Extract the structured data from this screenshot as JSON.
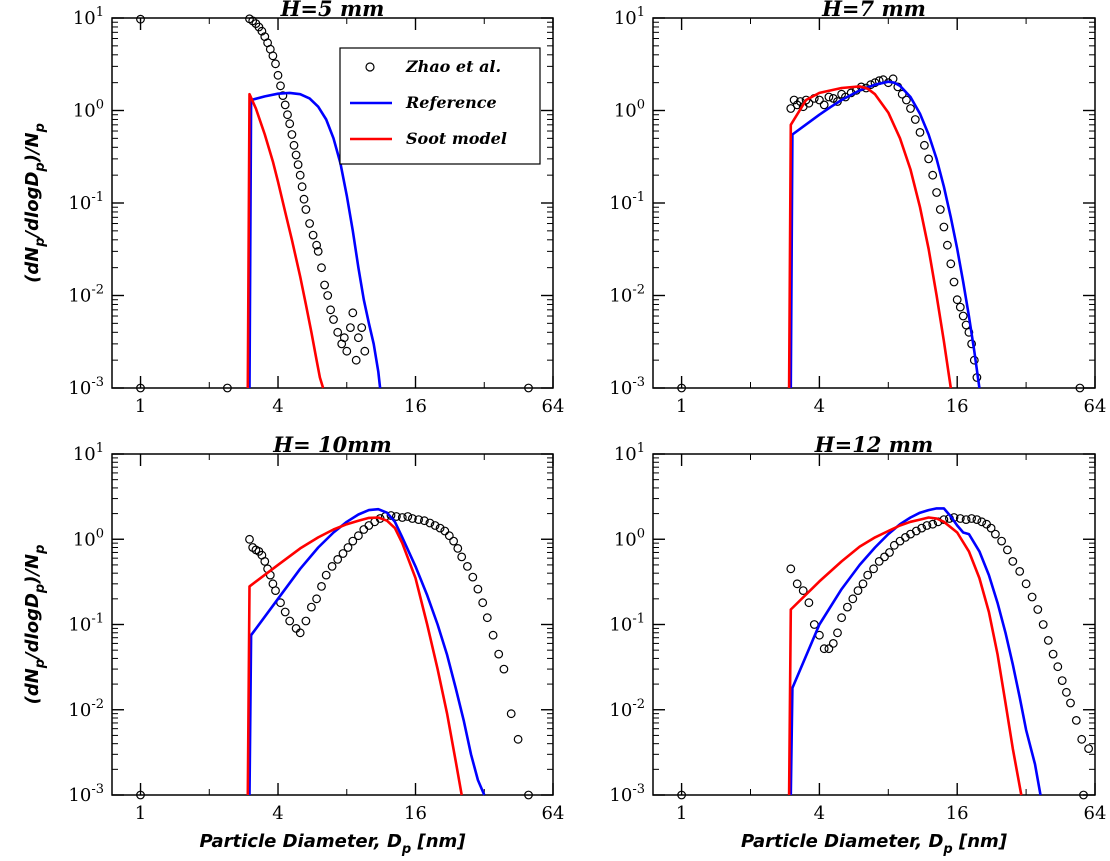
{
  "colors": {
    "reference": "#0000ff",
    "soot_model": "#ff0000",
    "experiment": "#000000"
  },
  "axis_text": {
    "ylabel_main": "(dN",
    "ylabel_sub1": "p",
    "ylabel_mid": "/dlogD",
    "ylabel_sub2": "p",
    "ylabel_end": ")/N",
    "ylabel_sub3": "p",
    "xlabel_main": "Particle Diameter, D",
    "xlabel_sub": "p",
    "xlabel_end": " [nm]",
    "ytick_base": "10",
    "ytick_exps": [
      "-3",
      "-2",
      "-1",
      "0",
      "1"
    ],
    "xticks": [
      "1",
      "4",
      "16",
      "64"
    ]
  },
  "legend": {
    "items": [
      "Zhao et al.",
      "Reference",
      "Soot model"
    ]
  },
  "chart_data": [
    {
      "type": "scatter",
      "title": "H=5 mm",
      "xlabel": "",
      "ylabel": "(dNp/dlogDp)/Np",
      "xscale": "log2",
      "yscale": "log10",
      "xlim": [
        0.75,
        64
      ],
      "ylim": [
        0.001,
        10
      ],
      "series": [
        {
          "name": "Zhao et al.",
          "kind": "scatter",
          "x": [
            1.0,
            3.0,
            3.1,
            3.2,
            3.3,
            3.4,
            3.5,
            3.6,
            3.7,
            3.8,
            3.9,
            4.0,
            4.1,
            4.2,
            4.3,
            4.4,
            4.5,
            4.6,
            4.7,
            4.8,
            4.9,
            5.0,
            5.1,
            5.2,
            5.3,
            5.5,
            5.7,
            5.9,
            6.0,
            6.2,
            6.4,
            6.6,
            6.8,
            7.0,
            7.3,
            7.6,
            7.8,
            8.0,
            8.3,
            8.5,
            8.8,
            9.0,
            9.3,
            9.6,
            1.0,
            2.4,
            50
          ],
          "y": [
            9.7,
            9.8,
            9.3,
            8.7,
            8.0,
            7.2,
            6.3,
            5.4,
            4.6,
            3.9,
            3.2,
            2.4,
            1.85,
            1.45,
            1.15,
            0.9,
            0.72,
            0.55,
            0.42,
            0.33,
            0.26,
            0.2,
            0.15,
            0.11,
            0.085,
            0.06,
            0.045,
            0.035,
            0.03,
            0.02,
            0.013,
            0.01,
            0.007,
            0.0055,
            0.004,
            0.003,
            0.0035,
            0.0025,
            0.0045,
            0.0065,
            0.002,
            0.0035,
            0.0045,
            0.0025,
            0.001,
            0.001,
            0.001
          ]
        },
        {
          "name": "Reference",
          "kind": "line",
          "x": [
            3.0,
            3.05,
            3.5,
            4.0,
            4.5,
            5.0,
            5.5,
            6.0,
            6.5,
            7.0,
            7.5,
            8.0,
            8.5,
            9.0,
            9.5,
            10.0,
            10.5,
            11.0,
            11.2
          ],
          "y": [
            0.001,
            1.3,
            1.42,
            1.52,
            1.55,
            1.5,
            1.35,
            1.1,
            0.8,
            0.5,
            0.27,
            0.12,
            0.05,
            0.02,
            0.009,
            0.005,
            0.003,
            0.0015,
            0.001
          ]
        },
        {
          "name": "Soot model",
          "kind": "line",
          "x": [
            2.95,
            3.0,
            3.2,
            3.5,
            3.8,
            4.0,
            4.3,
            4.6,
            5.0,
            5.3,
            5.6,
            5.9,
            6.1,
            6.3
          ],
          "y": [
            0.001,
            1.5,
            1.05,
            0.55,
            0.28,
            0.17,
            0.08,
            0.04,
            0.016,
            0.008,
            0.004,
            0.002,
            0.0013,
            0.001
          ]
        }
      ]
    },
    {
      "type": "scatter",
      "title": "H=7 mm",
      "xlabel": "",
      "ylabel": "",
      "xscale": "log2",
      "yscale": "log10",
      "xlim": [
        0.75,
        64
      ],
      "ylim": [
        0.001,
        10
      ],
      "series": [
        {
          "name": "Zhao et al.",
          "kind": "scatter",
          "x": [
            3.0,
            3.1,
            3.2,
            3.3,
            3.4,
            3.5,
            3.6,
            3.8,
            4.0,
            4.2,
            4.4,
            4.6,
            4.8,
            5.0,
            5.2,
            5.5,
            5.8,
            6.1,
            6.4,
            6.7,
            7.0,
            7.3,
            7.6,
            8.0,
            8.4,
            8.8,
            9.2,
            9.6,
            10.0,
            10.5,
            11.0,
            11.5,
            12.0,
            12.5,
            13.0,
            13.5,
            14.0,
            14.5,
            15.0,
            15.5,
            16.0,
            16.5,
            17.0,
            17.5,
            18.0,
            18.5,
            19.0,
            19.5,
            1.0,
            55
          ],
          "y": [
            1.05,
            1.3,
            1.15,
            1.25,
            1.1,
            1.3,
            1.2,
            1.35,
            1.3,
            1.15,
            1.4,
            1.35,
            1.25,
            1.5,
            1.4,
            1.55,
            1.65,
            1.8,
            1.75,
            1.9,
            2.0,
            2.1,
            2.15,
            2.0,
            2.2,
            1.8,
            1.5,
            1.3,
            1.05,
            0.8,
            0.58,
            0.42,
            0.3,
            0.2,
            0.13,
            0.085,
            0.055,
            0.035,
            0.022,
            0.014,
            0.009,
            0.0075,
            0.006,
            0.0048,
            0.004,
            0.003,
            0.002,
            0.0013,
            0.001,
            0.001
          ]
        },
        {
          "name": "Reference",
          "kind": "line",
          "x": [
            3.0,
            3.05,
            4.0,
            4.5,
            5.0,
            6.0,
            7.0,
            8.0,
            8.5,
            9.0,
            10.0,
            11.0,
            12.0,
            13.0,
            14.0,
            15.0,
            16.0,
            17.0,
            18.0,
            19.0,
            20.0
          ],
          "y": [
            0.001,
            0.55,
            0.9,
            1.1,
            1.3,
            1.65,
            1.9,
            2.05,
            2.0,
            1.85,
            1.4,
            0.92,
            0.55,
            0.3,
            0.15,
            0.07,
            0.032,
            0.014,
            0.006,
            0.0025,
            0.001
          ]
        },
        {
          "name": "Soot model",
          "kind": "line",
          "x": [
            2.95,
            3.0,
            3.5,
            4.0,
            5.0,
            6.0,
            6.5,
            7.0,
            8.0,
            9.0,
            10.0,
            11.0,
            12.0,
            13.0,
            14.0,
            15.0
          ],
          "y": [
            0.001,
            0.7,
            1.3,
            1.55,
            1.75,
            1.82,
            1.72,
            1.5,
            0.95,
            0.5,
            0.23,
            0.09,
            0.032,
            0.01,
            0.0032,
            0.001
          ]
        }
      ]
    },
    {
      "type": "scatter",
      "title": "H= 10mm",
      "xlabel": "Particle Diameter, Dp [nm]",
      "ylabel": "(dNp/dlogDp)/Np",
      "xscale": "log2",
      "yscale": "log10",
      "xlim": [
        0.75,
        64
      ],
      "ylim": [
        0.001,
        10
      ],
      "series": [
        {
          "name": "Zhao et al.",
          "kind": "scatter",
          "x": [
            3.0,
            3.1,
            3.2,
            3.3,
            3.4,
            3.5,
            3.6,
            3.7,
            3.8,
            3.9,
            4.1,
            4.3,
            4.5,
            4.8,
            5.0,
            5.3,
            5.6,
            5.9,
            6.2,
            6.5,
            6.9,
            7.3,
            7.7,
            8.1,
            8.5,
            9.0,
            9.5,
            10.0,
            10.6,
            11.2,
            11.8,
            12.5,
            13.2,
            14.0,
            14.8,
            15.5,
            16.5,
            17.5,
            18.5,
            19.5,
            20.5,
            21.5,
            22.5,
            23.5,
            24.5,
            25.5,
            27.0,
            28.5,
            30.0,
            31.5,
            33.0,
            35.0,
            37.0,
            39.0,
            42.0,
            45.0,
            1.0,
            50
          ],
          "y": [
            1.0,
            0.8,
            0.75,
            0.72,
            0.65,
            0.55,
            0.45,
            0.38,
            0.3,
            0.25,
            0.18,
            0.14,
            0.11,
            0.09,
            0.08,
            0.11,
            0.16,
            0.2,
            0.28,
            0.38,
            0.48,
            0.58,
            0.68,
            0.8,
            0.95,
            1.1,
            1.3,
            1.45,
            1.6,
            1.75,
            1.85,
            1.9,
            1.85,
            1.8,
            1.85,
            1.75,
            1.7,
            1.65,
            1.55,
            1.45,
            1.35,
            1.25,
            1.1,
            0.95,
            0.78,
            0.62,
            0.48,
            0.36,
            0.26,
            0.18,
            0.12,
            0.075,
            0.045,
            0.03,
            0.009,
            0.0045,
            0.001,
            0.001
          ]
        },
        {
          "name": "Reference",
          "kind": "line",
          "x": [
            3.0,
            3.05,
            4.0,
            5.0,
            6.0,
            7.0,
            8.0,
            9.0,
            10.0,
            11.0,
            12.0,
            13.0,
            14.0,
            16.0,
            18.0,
            20.0,
            22.0,
            24.0,
            26.0,
            28.0,
            30.0,
            32.0
          ],
          "y": [
            0.001,
            0.075,
            0.2,
            0.45,
            0.8,
            1.2,
            1.6,
            1.95,
            2.2,
            2.25,
            2.05,
            1.6,
            1.05,
            0.48,
            0.22,
            0.1,
            0.044,
            0.018,
            0.0075,
            0.003,
            0.0015,
            0.001
          ]
        },
        {
          "name": "Soot model",
          "kind": "line",
          "x": [
            2.95,
            3.0,
            4.0,
            5.0,
            6.0,
            7.0,
            8.0,
            9.0,
            10.0,
            11.0,
            12.0,
            13.0,
            14.0,
            16.0,
            18.0,
            20.0,
            22.0,
            24.0,
            25.5
          ],
          "y": [
            0.001,
            0.28,
            0.5,
            0.78,
            1.05,
            1.3,
            1.5,
            1.65,
            1.78,
            1.8,
            1.65,
            1.35,
            0.9,
            0.35,
            0.1,
            0.03,
            0.009,
            0.0025,
            0.001
          ]
        }
      ]
    },
    {
      "type": "scatter",
      "title": "H=12 mm",
      "xlabel": "Particle Diameter, Dp [nm]",
      "ylabel": "",
      "xscale": "log2",
      "yscale": "log10",
      "xlim": [
        0.75,
        64
      ],
      "ylim": [
        0.001,
        10
      ],
      "series": [
        {
          "name": "Zhao et al.",
          "kind": "scatter",
          "x": [
            3.0,
            3.2,
            3.4,
            3.6,
            3.8,
            4.0,
            4.2,
            4.4,
            4.6,
            4.8,
            5.0,
            5.3,
            5.6,
            5.9,
            6.2,
            6.5,
            6.9,
            7.3,
            7.7,
            8.1,
            8.5,
            9.0,
            9.5,
            10.0,
            10.6,
            11.2,
            11.8,
            12.5,
            13.2,
            14.0,
            14.8,
            15.5,
            16.5,
            17.5,
            18.5,
            19.5,
            20.5,
            21.5,
            22.5,
            23.5,
            25.0,
            26.5,
            28.0,
            30.0,
            32.0,
            34.0,
            36.0,
            38.0,
            40.0,
            42.0,
            44.0,
            46.0,
            48.0,
            50.0,
            53.0,
            56.0,
            60.0,
            1.0,
            57
          ],
          "y": [
            0.45,
            0.3,
            0.25,
            0.18,
            0.1,
            0.075,
            0.052,
            0.052,
            0.06,
            0.08,
            0.12,
            0.16,
            0.2,
            0.25,
            0.3,
            0.38,
            0.45,
            0.55,
            0.62,
            0.7,
            0.85,
            0.95,
            1.05,
            1.15,
            1.25,
            1.35,
            1.45,
            1.5,
            1.6,
            1.7,
            1.75,
            1.8,
            1.75,
            1.7,
            1.75,
            1.7,
            1.6,
            1.5,
            1.35,
            1.15,
            0.95,
            0.75,
            0.55,
            0.42,
            0.3,
            0.21,
            0.15,
            0.1,
            0.065,
            0.045,
            0.032,
            0.022,
            0.016,
            0.012,
            0.0075,
            0.0045,
            0.0035,
            0.001,
            0.001
          ]
        },
        {
          "name": "Reference",
          "kind": "line",
          "x": [
            3.0,
            3.05,
            4.0,
            5.0,
            6.0,
            7.0,
            8.0,
            9.0,
            10.0,
            11.0,
            12.0,
            13.0,
            14.0,
            15.0,
            16.0,
            17.0,
            18.0,
            20.0,
            22.0,
            24.0,
            26.0,
            28.0,
            30.0,
            32.0,
            35.0,
            37.0
          ],
          "y": [
            0.001,
            0.018,
            0.1,
            0.26,
            0.5,
            0.8,
            1.15,
            1.5,
            1.8,
            2.05,
            2.2,
            2.3,
            2.3,
            1.85,
            1.45,
            1.2,
            1.15,
            0.72,
            0.38,
            0.18,
            0.08,
            0.034,
            0.014,
            0.0058,
            0.0023,
            0.001
          ]
        },
        {
          "name": "Soot model",
          "kind": "line",
          "x": [
            2.95,
            3.0,
            4.0,
            5.0,
            6.0,
            7.0,
            8.0,
            9.0,
            10.0,
            11.0,
            12.0,
            13.0,
            14.0,
            16.0,
            18.0,
            20.0,
            22.0,
            24.0,
            26.0,
            28.0,
            30.5
          ],
          "y": [
            0.001,
            0.15,
            0.32,
            0.55,
            0.82,
            1.05,
            1.25,
            1.45,
            1.6,
            1.7,
            1.8,
            1.75,
            1.6,
            1.2,
            0.72,
            0.35,
            0.14,
            0.045,
            0.012,
            0.0035,
            0.001
          ]
        }
      ]
    }
  ]
}
